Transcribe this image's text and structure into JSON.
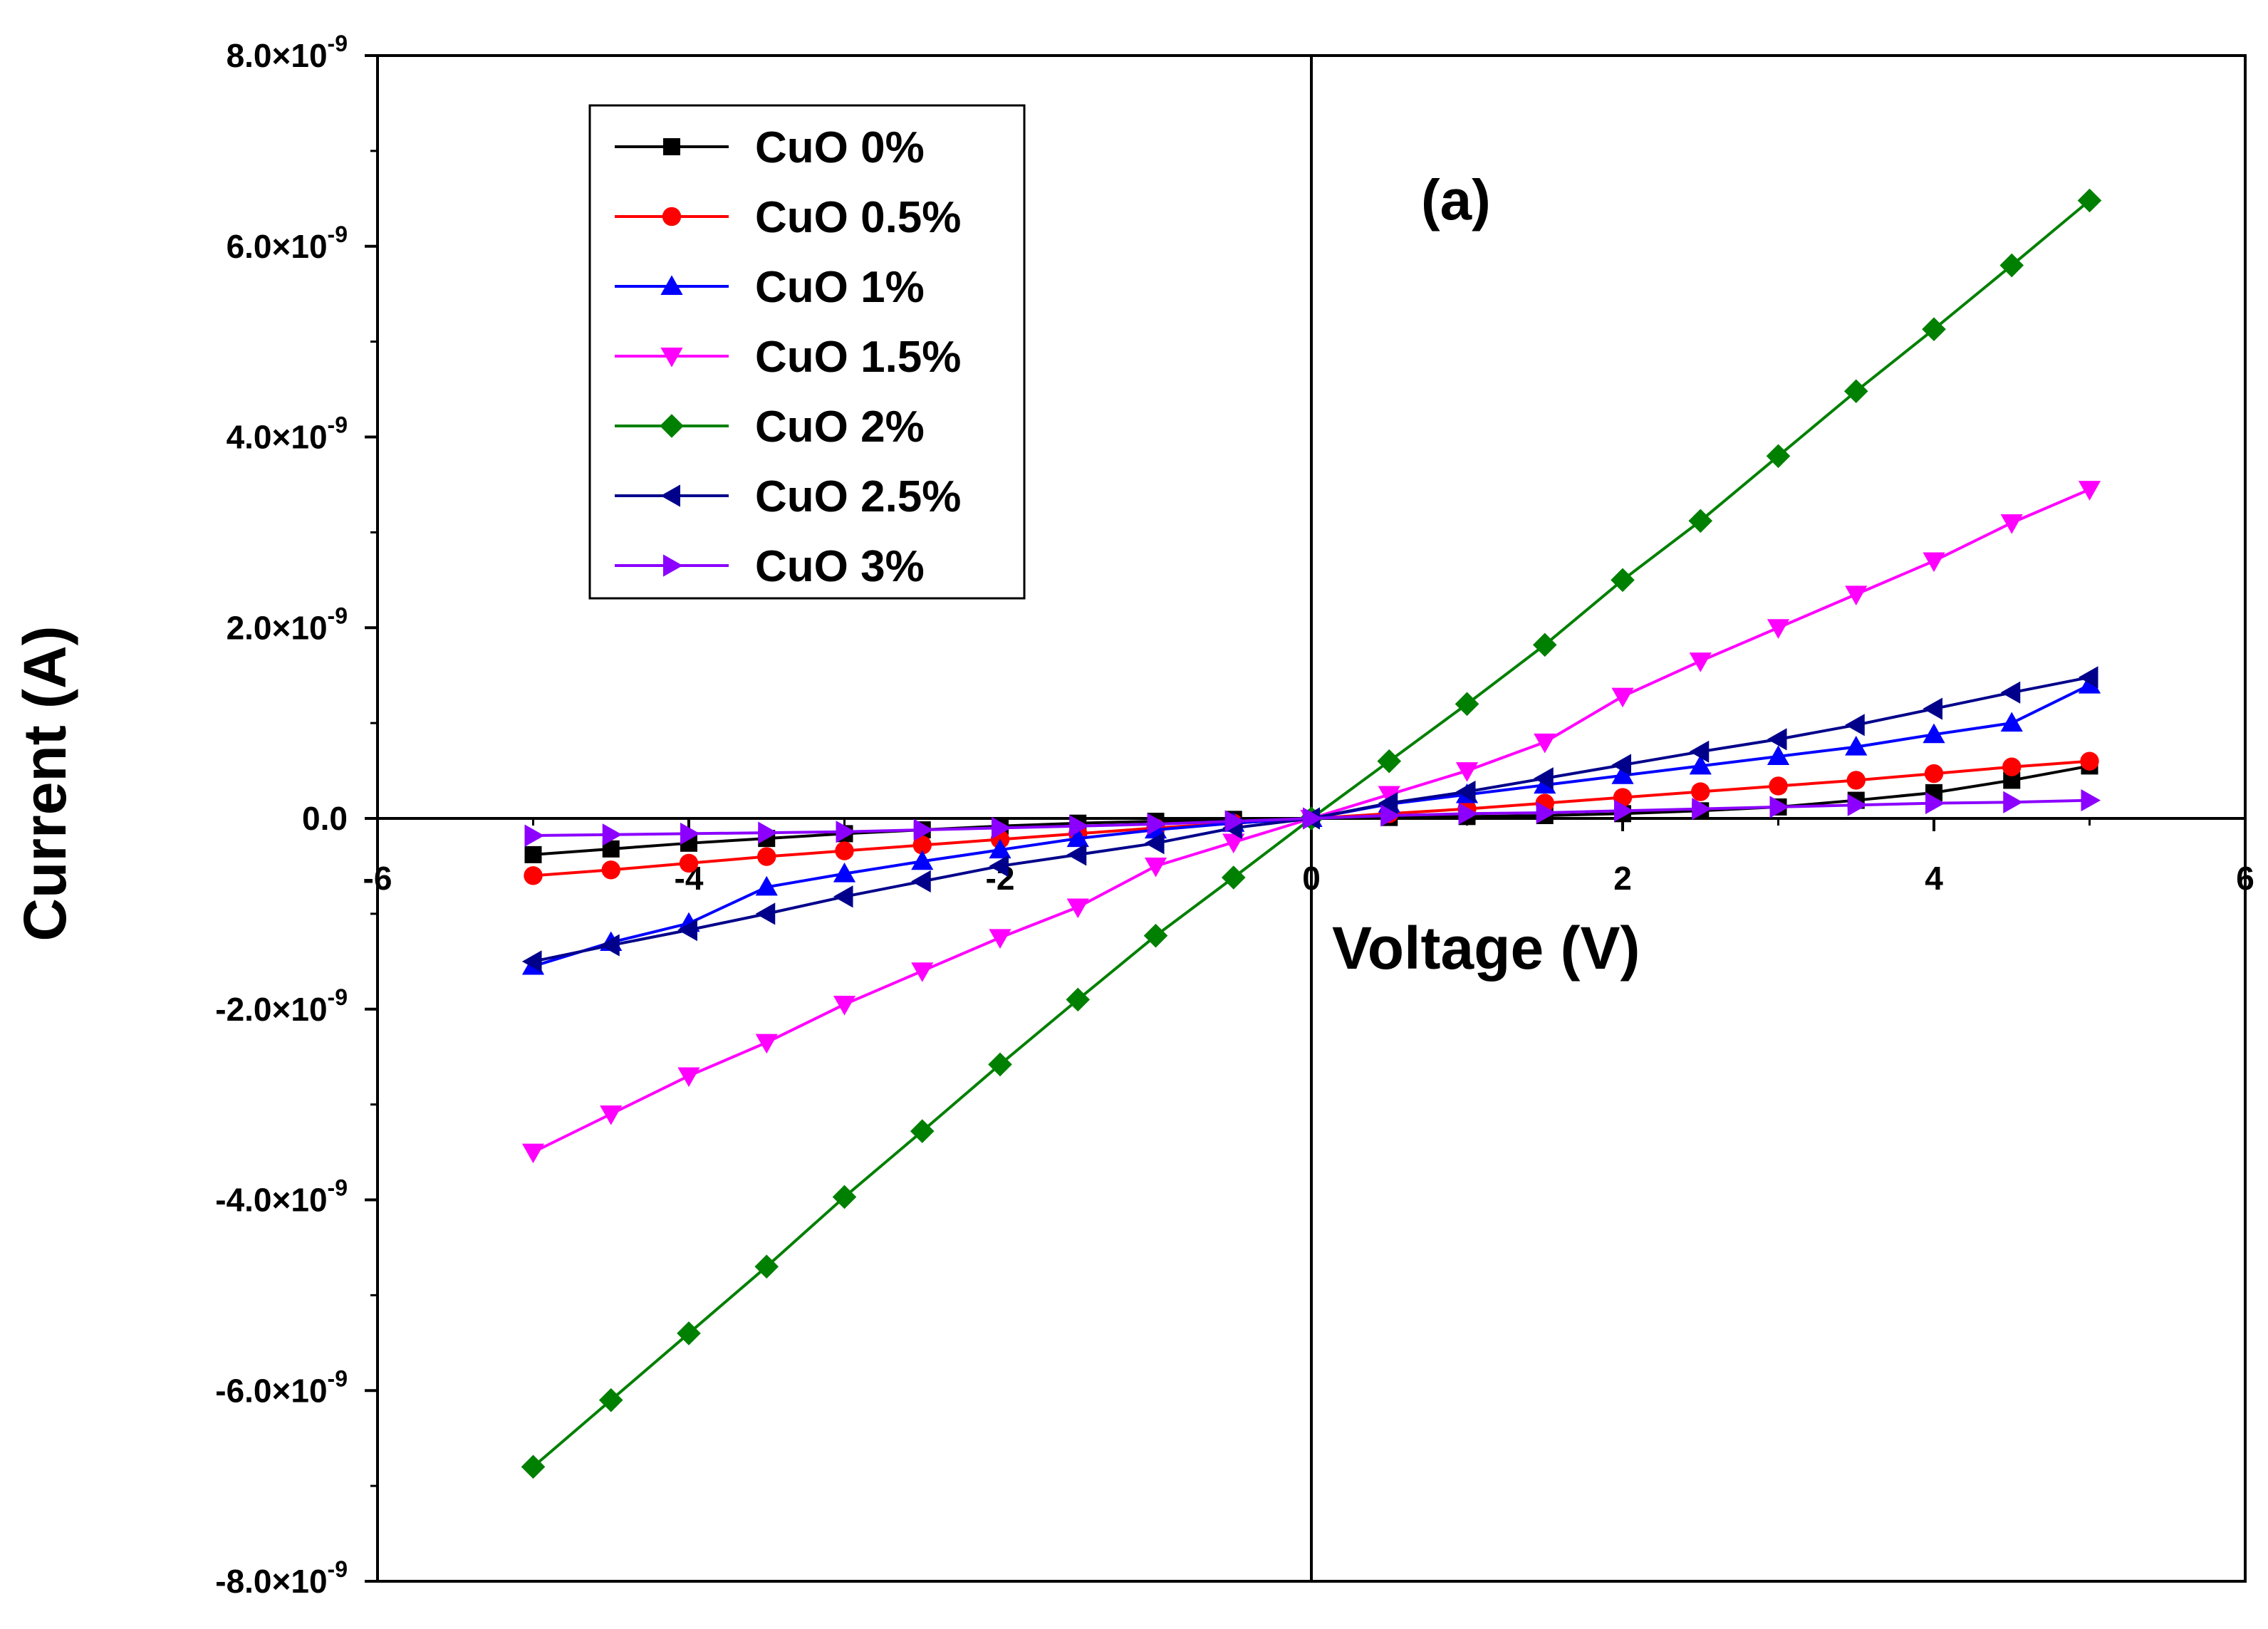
{
  "chart_data": {
    "type": "line",
    "title": "",
    "panel_label": "(a)",
    "xlabel": "Voltage (V)",
    "ylabel": "Current (A)",
    "xlim": [
      -6,
      6
    ],
    "ylim": [
      -8e-09,
      8e-09
    ],
    "x_ticks": [
      -6,
      -4,
      -2,
      0,
      2,
      4,
      6
    ],
    "x_tick_labels": [
      "-6",
      "-4",
      "-2",
      "0",
      "2",
      "4",
      "6"
    ],
    "y_ticks": [
      8e-09,
      6e-09,
      4e-09,
      2e-09,
      0,
      -2e-09,
      -4e-09,
      -6e-09,
      -8e-09
    ],
    "y_tick_labels": [
      {
        "mantissa": "8.0×10",
        "exp": "-9"
      },
      {
        "mantissa": "6.0×10",
        "exp": "-9"
      },
      {
        "mantissa": "4.0×10",
        "exp": "-9"
      },
      {
        "mantissa": "2.0×10",
        "exp": "-9"
      },
      {
        "mantissa": "0.0",
        "exp": ""
      },
      {
        "mantissa": "-2.0×10",
        "exp": "-9"
      },
      {
        "mantissa": "-4.0×10",
        "exp": "-9"
      },
      {
        "mantissa": "-6.0×10",
        "exp": "-9"
      },
      {
        "mantissa": "-8.0×10",
        "exp": "-9"
      }
    ],
    "grid": false,
    "legend_position": "top-left",
    "x": [
      -5,
      -4.5,
      -4,
      -3.5,
      -3,
      -2.5,
      -2,
      -1.5,
      -1,
      -0.5,
      0,
      0.5,
      1,
      1.5,
      2,
      2.5,
      3,
      3.5,
      4,
      4.5,
      5
    ],
    "series": [
      {
        "name": "CuO 0%",
        "color": "#000000",
        "marker": "square",
        "values": [
          -3.8e-10,
          -3.2e-10,
          -2.6e-10,
          -2.1e-10,
          -1.6e-10,
          -1.2e-10,
          -8e-11,
          -5e-11,
          -3e-11,
          -1e-11,
          0,
          1e-11,
          2e-11,
          3e-11,
          5e-11,
          8e-11,
          1.2e-10,
          1.9e-10,
          2.7e-10,
          4e-10,
          5.5e-10
        ]
      },
      {
        "name": "CuO 0.5%",
        "color": "#ff0000",
        "marker": "circle",
        "values": [
          -6e-10,
          -5.4e-10,
          -4.7e-10,
          -4e-10,
          -3.4e-10,
          -2.8e-10,
          -2.2e-10,
          -1.6e-10,
          -1e-10,
          -5e-11,
          0,
          5e-11,
          1e-10,
          1.6e-10,
          2.2e-10,
          2.8e-10,
          3.4e-10,
          4e-10,
          4.7e-10,
          5.4e-10,
          6e-10
        ]
      },
      {
        "name": "CuO 1%",
        "color": "#0000ff",
        "marker": "triangle-up",
        "values": [
          -1.55e-09,
          -1.3e-09,
          -1.1e-09,
          -7.2e-10,
          -5.8e-10,
          -4.5e-10,
          -3.3e-10,
          -2.1e-10,
          -1.2e-10,
          -5e-11,
          0,
          1.5e-10,
          2.5e-10,
          3.5e-10,
          4.5e-10,
          5.5e-10,
          6.5e-10,
          7.5e-10,
          8.8e-10,
          1e-09,
          1.4e-09
        ]
      },
      {
        "name": "CuO 1.5%",
        "color": "#ff00ff",
        "marker": "triangle-down",
        "values": [
          -3.5e-09,
          -3.1e-09,
          -2.7e-09,
          -2.35e-09,
          -1.95e-09,
          -1.6e-09,
          -1.25e-09,
          -9.3e-10,
          -5e-10,
          -2.5e-10,
          0,
          2.5e-10,
          5e-10,
          8e-10,
          1.28e-09,
          1.65e-09,
          2e-09,
          2.35e-09,
          2.7e-09,
          3.1e-09,
          3.45e-09
        ]
      },
      {
        "name": "CuO 2%",
        "color": "#008000",
        "marker": "diamond",
        "values": [
          -6.8e-09,
          -6.1e-09,
          -5.4e-09,
          -4.7e-09,
          -3.97e-09,
          -3.28e-09,
          -2.58e-09,
          -1.9e-09,
          -1.23e-09,
          -6.2e-10,
          0,
          6e-10,
          1.2e-09,
          1.82e-09,
          2.5e-09,
          3.12e-09,
          3.8e-09,
          4.48e-09,
          5.13e-09,
          5.8e-09,
          6.48e-09
        ]
      },
      {
        "name": "CuO 2.5%",
        "color": "#00008b",
        "marker": "triangle-left",
        "values": [
          -1.5e-09,
          -1.33e-09,
          -1.17e-09,
          -1e-09,
          -8.2e-10,
          -6.6e-10,
          -5e-10,
          -3.8e-10,
          -2.6e-10,
          -1e-10,
          0,
          1.6e-10,
          2.8e-10,
          4.2e-10,
          5.6e-10,
          7e-10,
          8.3e-10,
          9.8e-10,
          1.15e-09,
          1.32e-09,
          1.48e-09
        ]
      },
      {
        "name": "CuO 3%",
        "color": "#8b00ff",
        "marker": "triangle-right",
        "values": [
          -1.8e-10,
          -1.7e-10,
          -1.6e-10,
          -1.5e-10,
          -1.4e-10,
          -1.2e-10,
          -1e-10,
          -8e-11,
          -6e-11,
          -3e-11,
          0,
          3e-11,
          5e-11,
          6e-11,
          8e-11,
          1e-10,
          1.2e-10,
          1.4e-10,
          1.6e-10,
          1.7e-10,
          1.9e-10
        ]
      }
    ]
  }
}
